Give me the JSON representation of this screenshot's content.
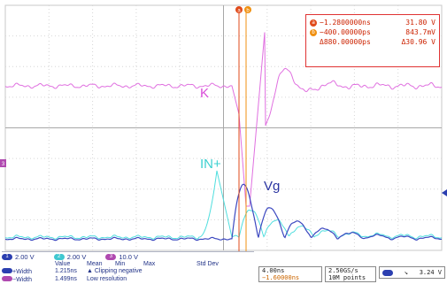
{
  "chart_data": {
    "type": "line",
    "title": "",
    "xlabel": "",
    "ylabel": "",
    "series": [
      {
        "name": "K",
        "color": "#e070e0"
      },
      {
        "name": "IN+",
        "color": "#50dede"
      },
      {
        "name": "Vg",
        "color": "#3c48c0"
      }
    ],
    "annotations": [
      "K",
      "IN+",
      "Vg"
    ],
    "grid": true
  },
  "cursor_markers": {
    "a": "a",
    "b": "b"
  },
  "cursor_readout": {
    "a": {
      "icon": "a",
      "time": "−1.2800000ns",
      "value": "31.80 V"
    },
    "b": {
      "icon": "b",
      "time": "−400.00000ps",
      "value": "843.7mV"
    },
    "delta": {
      "time": "Δ880.00000ps",
      "value": "Δ30.96 V"
    }
  },
  "channels": [
    {
      "num": "1",
      "scale": "2.00 V",
      "color": "#2b3fb0"
    },
    {
      "num": "2",
      "scale": "2.00 V",
      "color": "#40c8d0"
    },
    {
      "num": "3",
      "scale": "10.0 V",
      "color": "#b04ab0"
    }
  ],
  "left_marker": "3",
  "measurements": {
    "headers": [
      "Value",
      "Mean",
      "Min",
      "Max",
      "Std Dev"
    ],
    "rows": [
      {
        "label": "+Width",
        "pill": "#2b3fb0",
        "value": "1.215ns",
        "note": "▲ Clipping negative"
      },
      {
        "label": "−Width",
        "pill": "#b04ab0",
        "value": "1.499ns",
        "note": "Low resolution"
      }
    ]
  },
  "timebase": {
    "per_div": "4.00ns",
    "trigger_delay": "−1.60000ns"
  },
  "acquisition": {
    "rate": "2.50GS/s",
    "points": "10M points"
  },
  "trigger": {
    "slope": "↘",
    "level": "3.24 V",
    "color": "#2b3fb0"
  }
}
